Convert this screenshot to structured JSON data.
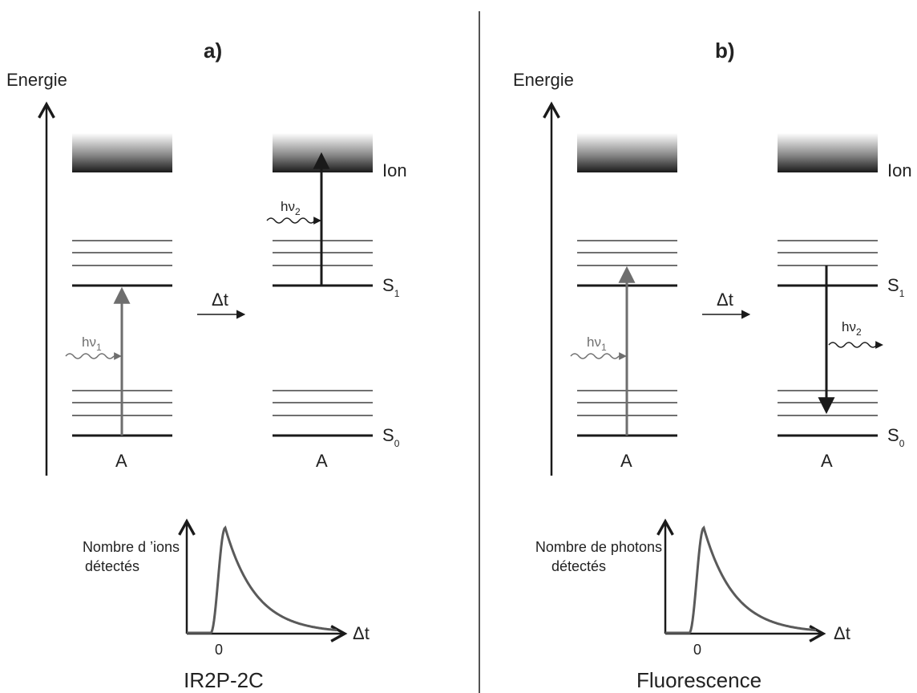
{
  "panels": [
    {
      "id": "a",
      "title": "a)",
      "energy_label": "Energie",
      "ion_label": "Ion",
      "s1_label": "S",
      "s1_sub": "1",
      "s0_label": "S",
      "s0_sub": "0",
      "molecule_left": "A",
      "molecule_right": "A",
      "photon1_label": "hν",
      "photon1_sub": "1",
      "photon2_label": "hν",
      "photon2_sub": "2",
      "delay_label": "Δt",
      "graph_ylabel_line1": "Nombre d ’ions",
      "graph_ylabel_line2": "détectés",
      "graph_xlabel": "Δt",
      "graph_zero": "0",
      "caption": "IR2P-2C"
    },
    {
      "id": "b",
      "title": "b)",
      "energy_label": "Energie",
      "ion_label": "Ion",
      "s1_label": "S",
      "s1_sub": "1",
      "s0_label": "S",
      "s0_sub": "0",
      "molecule_left": "A",
      "molecule_right": "A",
      "photon1_label": "hν",
      "photon1_sub": "1",
      "photon2_label": "hν",
      "photon2_sub": "2",
      "delay_label": "Δt",
      "graph_ylabel_line1": "Nombre de photons",
      "graph_ylabel_line2": "détectés",
      "graph_xlabel": "Δt",
      "graph_zero": "0",
      "caption": "Fluorescence"
    }
  ],
  "colors": {
    "line": "#1a1a1a",
    "grey_arrow": "#6e6e6e",
    "curve": "#5a5a5a",
    "ion_band_dark": "#1a1a1a",
    "ion_band_light": "#ffffff"
  }
}
